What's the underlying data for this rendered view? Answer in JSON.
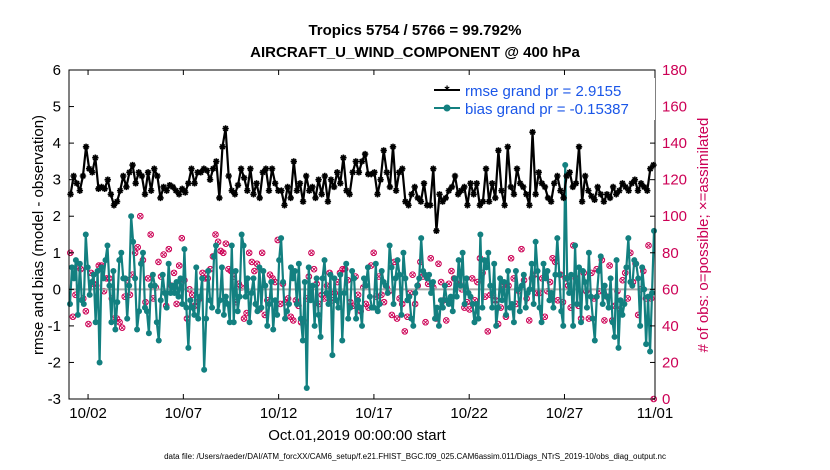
{
  "chart_data": {
    "type": "line",
    "title": "Tropics 5754 / 5766 = 99.792%",
    "subtitle": "AIRCRAFT_U_WIND_COMPONENT @ 400 hPa",
    "xlabel": "Oct.01,2019 00:00:00 start",
    "ylabel": "rmse and bias (model - observation)",
    "ylabel_right": "# of obs: o=possible; ×=assimilated",
    "xlim": [
      0.5,
      31.25
    ],
    "ylim": [
      -3,
      6
    ],
    "ylim_right": [
      0,
      180
    ],
    "x_tick_values": [
      1.5,
      6.5,
      11.5,
      16.5,
      21.5,
      26.5,
      31.5
    ],
    "x_tick_labels": [
      "10/02",
      "10/07",
      "10/12",
      "10/17",
      "10/22",
      "10/27",
      "11/01"
    ],
    "y_ticks": [
      -3,
      -2,
      -1,
      0,
      1,
      2,
      3,
      4,
      5,
      6
    ],
    "y_ticks_right": [
      0,
      20,
      40,
      60,
      80,
      100,
      120,
      140,
      160,
      180
    ],
    "legend_position": "top-right",
    "colors": {
      "rmse": "#000000",
      "bias": "#138080",
      "obs": "#cc0055",
      "zero": "#aaaaaa"
    },
    "legend": [
      "rmse grand pr = 2.9155",
      "bias grand pr = -0.15387"
    ],
    "series": [
      {
        "name": "rmse grand pr = 2.9155",
        "values": [
          2.6,
          3.1,
          2.9,
          2.7,
          3.1,
          3.9,
          3.3,
          3.2,
          3.6,
          2.75,
          2.8,
          2.75,
          3.0,
          2.6,
          2.3,
          2.4,
          2.7,
          3.1,
          2.8,
          3.2,
          3.4,
          2.9,
          3.2,
          3.1,
          2.6,
          3.2,
          2.7,
          3.3,
          3.1,
          2.5,
          2.8,
          2.7,
          2.85,
          2.8,
          2.7,
          2.6,
          2.75,
          2.65,
          2.9,
          3.3,
          2.9,
          3.2,
          3.2,
          3.3,
          3.25,
          3.0,
          3.3,
          3.5,
          2.5,
          3.9,
          4.4,
          3.1,
          2.7,
          2.6,
          2.85,
          3.3,
          3.05,
          2.7,
          3.3,
          2.6,
          2.9,
          2.5,
          3.2,
          3.3,
          2.7,
          3.3,
          2.9,
          2.7,
          2.7,
          2.3,
          2.8,
          2.5,
          3.5,
          2.7,
          2.9,
          2.4,
          3.1,
          2.7,
          2.8,
          2.5,
          3.0,
          2.6,
          3.1,
          2.4,
          3.0,
          2.8,
          3.2,
          2.9,
          3.6,
          2.7,
          2.6,
          3.2,
          3.5,
          3.2,
          3.5,
          3.7,
          3.15,
          3.15,
          3.2,
          2.6,
          3.0,
          3.8,
          3.2,
          2.8,
          3.9,
          2.7,
          3.2,
          3.3,
          2.4,
          2.3,
          2.6,
          2.8,
          2.5,
          2.4,
          2.9,
          2.3,
          2.3,
          3.3,
          1.6,
          2.6,
          2.4,
          2.5,
          2.7,
          2.8,
          3.1,
          2.6,
          2.7,
          2.8,
          2.3,
          2.9,
          2.6,
          2.9,
          2.3,
          2.4,
          3.3,
          2.4,
          2.9,
          2.5,
          3.8,
          2.7,
          2.3,
          3.9,
          2.8,
          2.6,
          3.3,
          2.9,
          2.8,
          2.6,
          2.3,
          4.3,
          2.6,
          3.2,
          2.9,
          2.8,
          2.5,
          2.4,
          2.9,
          3.1,
          2.7,
          2.5,
          3.1,
          3.2,
          2.8,
          2.9,
          3.9,
          2.4,
          3.1,
          2.7,
          2.55,
          2.45,
          2.8,
          2.6,
          2.4,
          2.6,
          2.5,
          2.8,
          2.6,
          2.7,
          2.9,
          2.8,
          2.7,
          2.9,
          3.0,
          2.7,
          2.9,
          2.8,
          2.7,
          3.3,
          3.4
        ]
      },
      {
        "name": "bias grand pr = -0.15387",
        "values": [
          -0.4,
          0.6,
          0.3,
          0.8,
          -0.7,
          0.7,
          -0.3,
          -0.4,
          1.5,
          0.6,
          -0.15,
          0.2,
          0.4,
          -0.9,
          0.5,
          -2.0,
          0.6,
          0.3,
          0.8,
          1.2,
          0.1,
          -0.9,
          0.5,
          -1.1,
          -0.35,
          0.8,
          1.0,
          0.3,
          0.3,
          -0.8,
          0.1,
          2.0,
          1.3,
          0.3,
          -1.1,
          -0.6,
          0.7,
          1.0,
          -0.5,
          -0.6,
          -1.2,
          0.1,
          0.4,
          0.1,
          -0.9,
          -1.4,
          -0.3,
          0.4,
          -0.1,
          -0.5,
          0.7,
          -0.1,
          0.1,
          -0.1,
          0.2,
          -0.2,
          0.3,
          -0.4,
          1.1,
          -0.5,
          -1.6,
          -0.3,
          -0.5,
          -0.7,
          0.6,
          -0.8,
          -0.2,
          0.3,
          -2.2,
          -0.8,
          0.5,
          -0.3,
          -0.5,
          0.9,
          1.2,
          -0.6,
          -0.3,
          0.6,
          -0.7,
          -0.2,
          -0.4,
          -0.9,
          1.2,
          -0.9,
          0.5,
          -0.6,
          -0.2,
          1.5,
          1.2,
          -0.2,
          0.3,
          -0.9,
          -0.1,
          0.3,
          -0.4,
          -0.6,
          0.6,
          -0.5,
          0.5,
          0.1,
          -1.0,
          -0.4,
          0.2,
          -1.1,
          -0.3,
          -0.7,
          0.8,
          1.4,
          0.2,
          -0.8,
          -0.6,
          -0.4,
          0.6,
          0.3,
          0.5,
          -0.4,
          0.7,
          -0.8,
          -1.4,
          0.2,
          -2.7,
          0.6,
          -0.3,
          0.1,
          -1.0,
          0.3,
          -0.7,
          -1.3,
          0.3,
          0.8,
          -0.1,
          -0.4,
          0.4,
          -1.8,
          0.3,
          -0.3,
          -0.5,
          0.4,
          -1.4,
          -0.1,
          0.7,
          -0.8,
          -0.5,
          0.5,
          0.3,
          -0.8,
          -0.3,
          -0.5,
          -1.0,
          0.3,
          0.1,
          0.6,
          -0.2,
          -0.5,
          -0.5,
          0.7,
          -0.6,
          -0.4,
          0.5,
          0.2,
          0.1,
          -0.1,
          1.2,
          0.6,
          -0.4,
          0.3,
          0.8,
          0.4,
          -0.7,
          1.0,
          0.3,
          -0.3,
          -0.2,
          -0.8,
          -1.0,
          -0.1,
          0.1,
          0.3,
          1.4,
          0.5,
          0.4,
          0.3,
          0.4,
          -0.1,
          0.2,
          -0.8,
          -0.5,
          -1.0,
          -0.3,
          -0.5,
          0.1,
          -0.3,
          -0.4,
          -0.2,
          -0.6,
          0.3,
          -0.2,
          0.8,
          0.1,
          1.0,
          -0.4,
          0.3,
          -0.1,
          -0.2,
          -0.4,
          -0.9,
          -0.4,
          -0.8,
          1.5,
          -0.5,
          0.8,
          0.6,
          1.0,
          0.1,
          -0.5,
          0.7,
          -1.0,
          -0.5,
          0.3,
          -0.3,
          0.2,
          -0.7,
          0.5,
          -0.5,
          -0.4,
          -0.9,
          0.5,
          0.0,
          -0.6,
          0.1,
          0.4,
          -0.5,
          -0.1,
          0.0,
          0.7,
          -0.4,
          1.3,
          0.5,
          -0.5,
          -0.9,
          0.7,
          0.3,
          0.5,
          -0.3,
          -0.1,
          -0.5,
          0.4,
          1.4,
          0.4,
          -0.6,
          -1.0,
          3.4,
          0.3,
          -0.1,
          0.4,
          -1.0,
          1.2,
          -0.4,
          0.6,
          -0.9,
          0.5,
          0.2,
          -0.5,
          1.0,
          -0.2,
          -0.8,
          -1.4,
          -0.2,
          0.5,
          0.9,
          -0.4,
          0.1,
          -0.2,
          -0.5,
          0.3,
          -0.9,
          -1.3,
          0.8,
          -1.6,
          -0.3,
          -0.7,
          -0.4,
          0.6,
          1.4,
          0.2,
          0.1,
          0.8,
          0.7,
          0.3,
          -1.0,
          0.6,
          0.0,
          -1.5,
          -0.2,
          -1.7,
          -0.1,
          1.6
        ]
      }
    ],
    "obs_counts": [
      80,
      45,
      57,
      73,
      71,
      55,
      48,
      41,
      69,
      63,
      62,
      73,
      73,
      59,
      66,
      66,
      55,
      44,
      44,
      42,
      39,
      56,
      65,
      57,
      68,
      80,
      83,
      100,
      76,
      53,
      66,
      90,
      55,
      61,
      75,
      67,
      79,
      51,
      82,
      62,
      69,
      52,
      73,
      88,
      65,
      44,
      60,
      57,
      51,
      53,
      55,
      69,
      66,
      66,
      71,
      78,
      90,
      86,
      81,
      80,
      85,
      71,
      70,
      67,
      53,
      63,
      61,
      44,
      47,
      80,
      75,
      70,
      74,
      49,
      80,
      46,
      54,
      68,
      66,
      64,
      87,
      52,
      63,
      53,
      55,
      45,
      43,
      54,
      51,
      42,
      43,
      55,
      67,
      80,
      71,
      63,
      52,
      57,
      55,
      62,
      69,
      54,
      58,
      64,
      69,
      71,
      71,
      65,
      53,
      51,
      67,
      57,
      48,
      61,
      52,
      50,
      73,
      80,
      56,
      67,
      57,
      53,
      61,
      59,
      46,
      75,
      44,
      55,
      52,
      37,
      45,
      58,
      68,
      52,
      62,
      75,
      67,
      42,
      63,
      77,
      61,
      44,
      74,
      64,
      54,
      43,
      63,
      70,
      66,
      63,
      63,
      60,
      50,
      53,
      49,
      66,
      54,
      64,
      77,
      69,
      56,
      37,
      57,
      57,
      54,
      41,
      50,
      62,
      45,
      62,
      77,
      66,
      52,
      59,
      82,
      65,
      55,
      43,
      66,
      68,
      58,
      58,
      66,
      45,
      59,
      64,
      77,
      75,
      54,
      68,
      53,
      66,
      62,
      50,
      84,
      66,
      51,
      44,
      69,
      59,
      44,
      69,
      55,
      71,
      59,
      76,
      43,
      56,
      73,
      43,
      51,
      59,
      49,
      65,
      69,
      55,
      80,
      64,
      74,
      46,
      60,
      70,
      55,
      84,
      55,
      0
    ]
  },
  "footer": "data file: /Users/raeder/DAI/ATM_forcXX/CAM6_setup/f.e21.FHIST_BGC.f09_025.CAM6assim.011/Diags_NTrS_2019-10/obs_diag_output.nc"
}
